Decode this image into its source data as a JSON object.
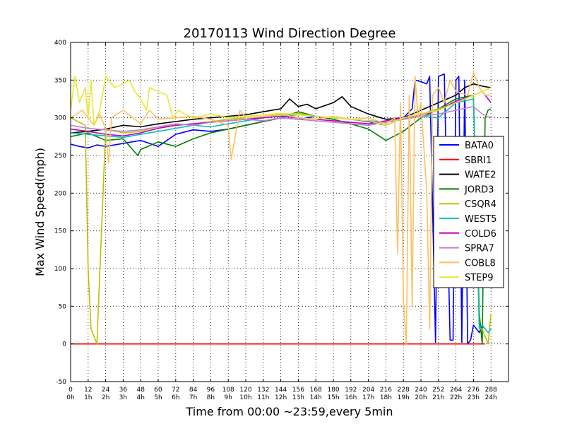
{
  "chart_data": {
    "type": "line",
    "title": "20170113 Wind Direction Degree",
    "xlabel": "Time from 00:00 ~23:59,every 5min",
    "ylabel": "Max Wind Speed(mph)",
    "xlim": [
      0,
      300
    ],
    "ylim": [
      -50,
      400
    ],
    "grid": true,
    "legend_position": "right",
    "x_ticks": [
      {
        "value": 0,
        "label": "0",
        "sublabel": "0h"
      },
      {
        "value": 12,
        "label": "12",
        "sublabel": "1h"
      },
      {
        "value": 24,
        "label": "24",
        "sublabel": "2h"
      },
      {
        "value": 36,
        "label": "36",
        "sublabel": "3h"
      },
      {
        "value": 48,
        "label": "48",
        "sublabel": "4h"
      },
      {
        "value": 60,
        "label": "60",
        "sublabel": "5h"
      },
      {
        "value": 72,
        "label": "72",
        "sublabel": "6h"
      },
      {
        "value": 84,
        "label": "84",
        "sublabel": "7h"
      },
      {
        "value": 96,
        "label": "96",
        "sublabel": "8h"
      },
      {
        "value": 108,
        "label": "108",
        "sublabel": "9h"
      },
      {
        "value": 120,
        "label": "120",
        "sublabel": "10h"
      },
      {
        "value": 132,
        "label": "132",
        "sublabel": "11h"
      },
      {
        "value": 144,
        "label": "144",
        "sublabel": "12h"
      },
      {
        "value": 156,
        "label": "156",
        "sublabel": "13h"
      },
      {
        "value": 168,
        "label": "168",
        "sublabel": "14h"
      },
      {
        "value": 180,
        "label": "180",
        "sublabel": "15h"
      },
      {
        "value": 192,
        "label": "192",
        "sublabel": "16h"
      },
      {
        "value": 204,
        "label": "204",
        "sublabel": "17h"
      },
      {
        "value": 216,
        "label": "216",
        "sublabel": "18h"
      },
      {
        "value": 228,
        "label": "228",
        "sublabel": "19h"
      },
      {
        "value": 240,
        "label": "240",
        "sublabel": "20h"
      },
      {
        "value": 252,
        "label": "252",
        "sublabel": "21h"
      },
      {
        "value": 264,
        "label": "264",
        "sublabel": "22h"
      },
      {
        "value": 276,
        "label": "276",
        "sublabel": "23h"
      },
      {
        "value": 288,
        "label": "288",
        "sublabel": "24h"
      }
    ],
    "y_ticks": [
      -50,
      0,
      50,
      100,
      150,
      200,
      250,
      300,
      350,
      400
    ],
    "series": [
      {
        "name": "BATA0",
        "color": "#0000ff",
        "x": [
          0,
          6,
          12,
          18,
          24,
          30,
          36,
          42,
          48,
          54,
          60,
          66,
          72,
          84,
          96,
          108,
          120,
          132,
          144,
          156,
          168,
          180,
          192,
          204,
          216,
          228,
          234,
          236,
          240,
          244,
          246,
          250,
          252,
          256,
          260,
          262,
          264,
          266,
          268,
          270,
          272,
          274,
          276,
          278,
          280,
          282,
          284
        ],
        "values": [
          265,
          262,
          260,
          264,
          262,
          264,
          266,
          268,
          270,
          266,
          262,
          270,
          278,
          284,
          282,
          285,
          290,
          295,
          300,
          298,
          302,
          300,
          298,
          295,
          290,
          300,
          312,
          350,
          348,
          345,
          355,
          2,
          355,
          358,
          5,
          5,
          350,
          355,
          2,
          350,
          0,
          5,
          25,
          20,
          15,
          25,
          20
        ]
      },
      {
        "name": "SBRI1",
        "color": "#ff0000",
        "x": [
          0,
          284
        ],
        "values": [
          0,
          0
        ]
      },
      {
        "name": "WATE2",
        "color": "#000000",
        "x": [
          0,
          12,
          24,
          36,
          48,
          60,
          72,
          84,
          96,
          108,
          120,
          132,
          144,
          150,
          156,
          162,
          168,
          180,
          186,
          192,
          204,
          216,
          228,
          240,
          252,
          264,
          270,
          276,
          282,
          288
        ],
        "values": [
          280,
          282,
          285,
          290,
          288,
          292,
          295,
          298,
          300,
          302,
          304,
          308,
          312,
          325,
          315,
          318,
          312,
          320,
          328,
          315,
          305,
          298,
          300,
          310,
          320,
          330,
          340,
          345,
          342,
          340
        ]
      },
      {
        "name": "JORD3",
        "color": "#008000",
        "x": [
          0,
          12,
          24,
          36,
          46,
          48,
          60,
          72,
          84,
          96,
          108,
          120,
          132,
          144,
          156,
          168,
          180,
          192,
          204,
          216,
          228,
          240,
          252,
          264,
          276,
          280,
          282,
          284,
          286,
          288
        ],
        "values": [
          275,
          280,
          270,
          272,
          250,
          258,
          268,
          262,
          272,
          280,
          285,
          290,
          295,
          300,
          308,
          302,
          298,
          292,
          285,
          270,
          282,
          300,
          312,
          325,
          330,
          40,
          0,
          300,
          310,
          312
        ]
      },
      {
        "name": "CSQR4",
        "color": "#bfbf00",
        "x": [
          0,
          10,
          12,
          14,
          16,
          18,
          24,
          36,
          48,
          60,
          72,
          84,
          96,
          108,
          120,
          132,
          144,
          156,
          168,
          180,
          192,
          204,
          216,
          228,
          240,
          252,
          264,
          276,
          280,
          282,
          286,
          288
        ],
        "values": [
          300,
          290,
          100,
          20,
          10,
          0,
          285,
          280,
          282,
          288,
          290,
          292,
          295,
          298,
          300,
          302,
          304,
          306,
          302,
          300,
          298,
          296,
          294,
          298,
          305,
          312,
          320,
          330,
          20,
          20,
          0,
          40
        ]
      },
      {
        "name": "WEST5",
        "color": "#00bfbf",
        "x": [
          0,
          12,
          24,
          36,
          48,
          60,
          72,
          84,
          96,
          108,
          120,
          132,
          144,
          156,
          168,
          180,
          192,
          204,
          216,
          228,
          240,
          252,
          264,
          276,
          280,
          282,
          286,
          288
        ],
        "values": [
          280,
          278,
          276,
          274,
          278,
          282,
          286,
          290,
          288,
          292,
          296,
          300,
          302,
          304,
          302,
          300,
          298,
          296,
          294,
          298,
          302,
          300,
          320,
          325,
          20,
          25,
          15,
          20
        ]
      },
      {
        "name": "COLD6",
        "color": "#bf00bf",
        "x": [
          0,
          12,
          24,
          36,
          48,
          60,
          72,
          84,
          96,
          108,
          120,
          132,
          144,
          156,
          168,
          180,
          192,
          204,
          216,
          228,
          240,
          252,
          264,
          276,
          282,
          288
        ],
        "values": [
          285,
          282,
          278,
          276,
          280,
          286,
          290,
          292,
          294,
          296,
          298,
          300,
          302,
          300,
          298,
          296,
          294,
          292,
          296,
          300,
          304,
          310,
          322,
          330,
          335,
          320
        ]
      },
      {
        "name": "SPRA7",
        "color": "#bf80d8",
        "x": [
          0,
          12,
          24,
          36,
          48,
          60,
          72,
          84,
          96,
          108,
          120,
          132,
          144,
          156,
          168,
          180,
          192,
          204,
          216,
          228,
          240,
          252,
          264,
          276,
          282,
          288
        ],
        "values": [
          290,
          286,
          284,
          282,
          284,
          288,
          292,
          290,
          294,
          296,
          298,
          296,
          300,
          298,
          296,
          294,
          292,
          290,
          294,
          298,
          302,
          305,
          310,
          315,
          305,
          300
        ]
      },
      {
        "name": "COBL8",
        "color": "#ffbf60",
        "x": [
          0,
          8,
          16,
          20,
          24,
          26,
          28,
          36,
          48,
          54,
          60,
          72,
          84,
          96,
          108,
          110,
          116,
          120,
          132,
          144,
          156,
          168,
          180,
          192,
          204,
          216,
          222,
          224,
          226,
          228,
          230,
          232,
          234,
          236,
          238,
          240,
          244,
          246,
          248,
          252,
          256,
          260,
          264,
          272,
          276,
          280,
          284,
          288
        ],
        "values": [
          300,
          310,
          290,
          305,
          285,
          240,
          300,
          310,
          292,
          310,
          298,
          300,
          302,
          298,
          290,
          245,
          310,
          300,
          302,
          305,
          300,
          298,
          302,
          298,
          300,
          292,
          300,
          120,
          320,
          60,
          0,
          330,
          50,
          355,
          300,
          320,
          200,
          20,
          330,
          340,
          320,
          350,
          335,
          330,
          360,
          340,
          330,
          330
        ]
      },
      {
        "name": "STEP9",
        "color": "#e8e830",
        "x": [
          0,
          3,
          6,
          10,
          12,
          14,
          16,
          18,
          20,
          24,
          30,
          36,
          40,
          44,
          48,
          52,
          54,
          60,
          66,
          70,
          74,
          78,
          84,
          90,
          96,
          108,
          120,
          132,
          144,
          156,
          168,
          180,
          192,
          204,
          216,
          228,
          240,
          252,
          264,
          276,
          288
        ],
        "values": [
          310,
          355,
          320,
          340,
          300,
          350,
          290,
          300,
          310,
          355,
          340,
          345,
          350,
          335,
          325,
          310,
          340,
          335,
          330,
          300,
          310,
          305,
          300,
          302,
          305,
          300,
          302,
          304,
          306,
          304,
          302,
          300,
          298,
          296,
          290,
          300,
          305,
          310,
          320,
          330,
          340
        ]
      }
    ]
  }
}
